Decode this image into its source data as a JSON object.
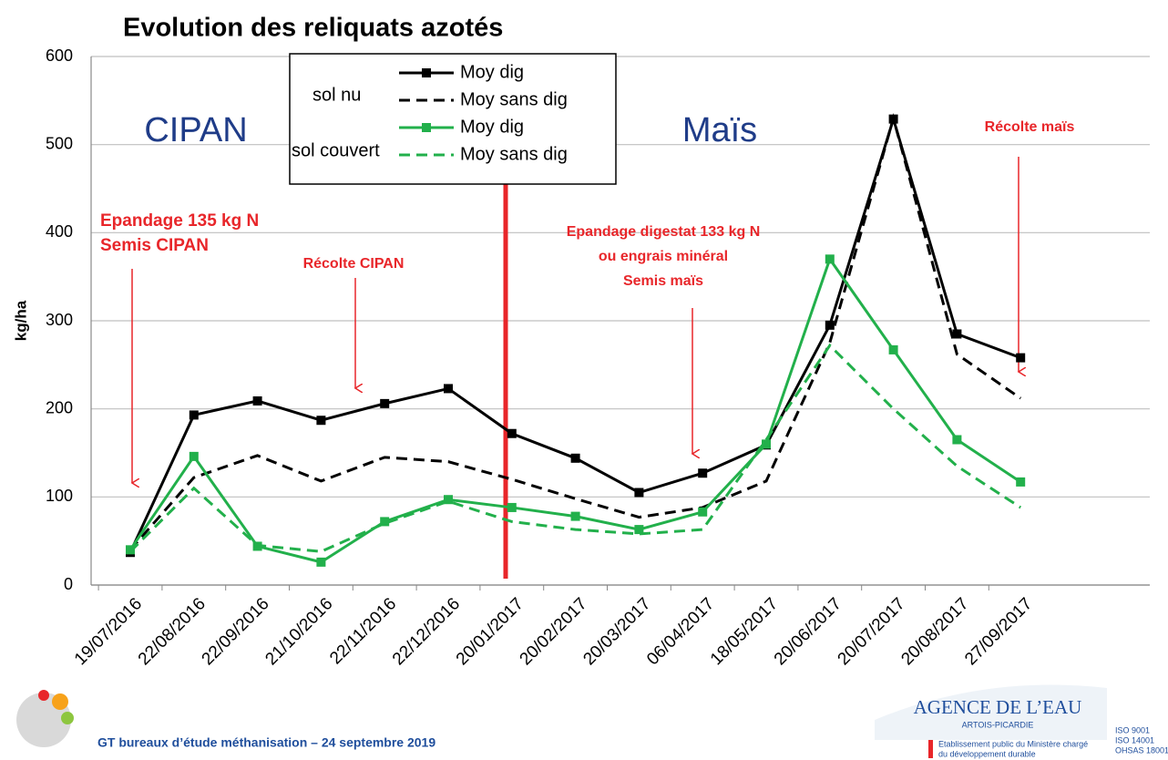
{
  "chart_data": {
    "type": "line",
    "title": "Evolution des reliquats azotés",
    "y_label": "kg/ha",
    "categories": [
      "19/07/2016",
      "22/08/2016",
      "22/09/2016",
      "21/10/2016",
      "22/11/2016",
      "22/12/2016",
      "20/01/2017",
      "20/02/2017",
      "20/03/2017",
      "06/04/2017",
      "18/05/2017",
      "20/06/2017",
      "20/07/2017",
      "20/08/2017",
      "27/09/2017"
    ],
    "legend_groups": [
      "sol nu",
      "sol couvert"
    ],
    "series": [
      {
        "name": "Moy dig",
        "color": "#000000",
        "dash": false,
        "marker": true,
        "values": [
          37,
          193,
          209,
          187,
          206,
          223,
          172,
          144,
          105,
          127,
          159,
          295,
          529,
          285,
          258
        ]
      },
      {
        "name": "Moy sans dig",
        "color": "#000000",
        "dash": true,
        "marker": false,
        "values": [
          40,
          122,
          147,
          118,
          145,
          140,
          120,
          98,
          77,
          88,
          118,
          275,
          530,
          262,
          212
        ]
      },
      {
        "name": "Moy dig",
        "color": "#22b04b",
        "dash": false,
        "marker": true,
        "values": [
          40,
          146,
          44,
          26,
          72,
          97,
          88,
          78,
          63,
          83,
          160,
          370,
          267,
          165,
          117
        ]
      },
      {
        "name": "Moy sans dig",
        "color": "#22b04b",
        "dash": true,
        "marker": false,
        "values": [
          38,
          110,
          45,
          38,
          70,
          95,
          72,
          63,
          58,
          63,
          165,
          272,
          200,
          135,
          88
        ]
      }
    ],
    "ylim": [
      0,
      600
    ],
    "yticks": [
      0,
      100,
      200,
      300,
      400,
      500,
      600
    ],
    "grid": true,
    "phases": [
      "CIPAN",
      "Maïs"
    ],
    "annotations": [
      [
        "Epandage 135 kg N",
        "Semis CIPAN"
      ],
      [
        "Récolte CIPAN"
      ],
      [
        "Epandage digestat  133 kg N",
        "ou engrais minéral",
        "Semis maïs"
      ],
      [
        "Récolte maïs"
      ]
    ]
  },
  "footer": {
    "text": "GT bureaux d’étude méthanisation – 24 septembre 2019",
    "agency": "AGENCE DE L’EAU",
    "region": "ARTOIS-PICARDIE",
    "ministry": [
      "Etablissement public du Ministère chargé",
      "du développement durable"
    ],
    "iso": [
      "ISO 9001",
      "ISO 14001",
      "OHSAS 18001"
    ]
  }
}
